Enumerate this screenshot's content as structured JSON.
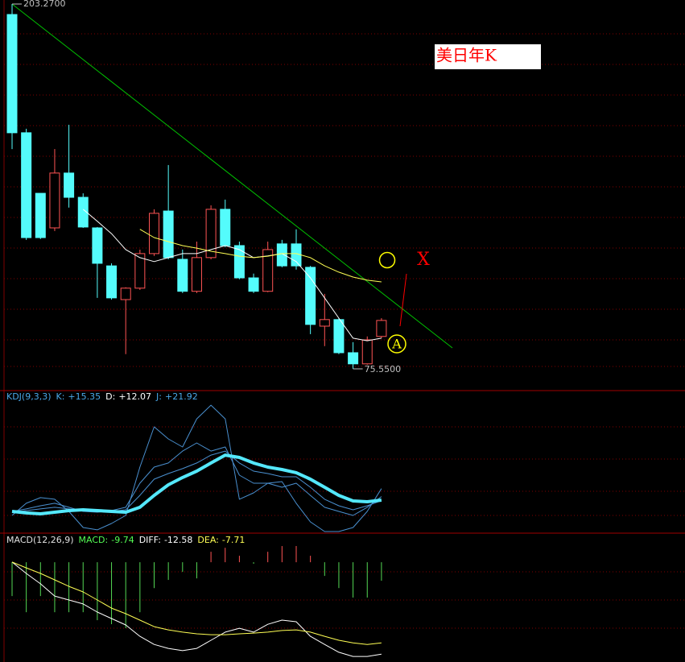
{
  "chart_data": [
    {
      "type": "candlestick",
      "title": "美日年K",
      "title_color": "#ff0000",
      "annotations": [
        "X",
        "A"
      ],
      "up_color": "#ff5454",
      "down_color": "#54fcfc",
      "ylim": [
        75.55,
        203.27
      ],
      "high_label": {
        "value": 203.27,
        "label": "203.2700"
      },
      "low_label": {
        "value": 75.55,
        "label": "75.5500"
      },
      "candles": [
        {
          "o": 199.6,
          "h": 203.27,
          "l": 152.5,
          "c": 158.2
        },
        {
          "o": 158.2,
          "h": 159.6,
          "l": 120.7,
          "c": 121.5
        },
        {
          "o": 137.0,
          "h": 137.0,
          "l": 121.0,
          "c": 121.5
        },
        {
          "o": 124.9,
          "h": 152.5,
          "l": 123.8,
          "c": 144.1
        },
        {
          "o": 144.1,
          "h": 161.0,
          "l": 132.0,
          "c": 135.6
        },
        {
          "o": 135.6,
          "h": 137.0,
          "l": 124.9,
          "c": 125.2
        },
        {
          "o": 124.9,
          "h": 125.2,
          "l": 100.4,
          "c": 112.5
        },
        {
          "o": 111.6,
          "h": 112.5,
          "l": 99.8,
          "c": 100.4
        },
        {
          "o": 99.8,
          "h": 104.1,
          "l": 80.7,
          "c": 103.8
        },
        {
          "o": 103.8,
          "h": 117.3,
          "l": 103.2,
          "c": 115.9
        },
        {
          "o": 115.9,
          "h": 131.4,
          "l": 115.1,
          "c": 130.0
        },
        {
          "o": 130.8,
          "h": 146.9,
          "l": 113.9,
          "c": 114.5
        },
        {
          "o": 113.9,
          "h": 117.3,
          "l": 102.1,
          "c": 102.7
        },
        {
          "o": 102.7,
          "h": 120.1,
          "l": 102.1,
          "c": 114.5
        },
        {
          "o": 114.5,
          "h": 132.8,
          "l": 113.9,
          "c": 131.4
        },
        {
          "o": 131.4,
          "h": 134.8,
          "l": 118.1,
          "c": 118.7
        },
        {
          "o": 118.7,
          "h": 120.1,
          "l": 106.9,
          "c": 107.4
        },
        {
          "o": 107.4,
          "h": 108.9,
          "l": 102.1,
          "c": 102.7
        },
        {
          "o": 102.7,
          "h": 120.1,
          "l": 102.4,
          "c": 117.3
        },
        {
          "o": 119.3,
          "h": 120.7,
          "l": 111.1,
          "c": 111.6
        },
        {
          "o": 119.3,
          "h": 124.4,
          "l": 110.3,
          "c": 111.6
        },
        {
          "o": 111.1,
          "h": 111.6,
          "l": 87.7,
          "c": 91.1
        },
        {
          "o": 90.5,
          "h": 101.8,
          "l": 83.5,
          "c": 92.8
        },
        {
          "o": 92.8,
          "h": 93.3,
          "l": 80.7,
          "c": 81.2
        },
        {
          "o": 81.2,
          "h": 84.9,
          "l": 75.55,
          "c": 77.3
        },
        {
          "o": 77.3,
          "h": 86.9,
          "l": 77.0,
          "c": 85.7
        },
        {
          "o": 86.9,
          "h": 93.3,
          "l": 86.3,
          "c": 92.5
        }
      ],
      "series": [
        {
          "color": "#ffffff",
          "values": [
            null,
            null,
            null,
            null,
            null,
            131.4,
            127.2,
            122.9,
            117.3,
            114.5,
            113.1,
            114.5,
            115.9,
            115.9,
            117.3,
            118.7,
            117.3,
            114.5,
            115.1,
            115.9,
            113.1,
            107.4,
            100.4,
            93.3,
            86.3,
            85.4,
            86.3
          ]
        },
        {
          "color": "#ffff54",
          "values": [
            null,
            null,
            null,
            null,
            null,
            null,
            null,
            null,
            null,
            124.4,
            121.5,
            120.1,
            118.7,
            117.8,
            116.7,
            115.9,
            115.0,
            114.5,
            115.0,
            115.9,
            115.9,
            114.5,
            111.6,
            109.4,
            107.7,
            106.6,
            106.0
          ]
        }
      ]
    },
    {
      "type": "line",
      "ylim": [
        -14.5,
        102
      ],
      "legend": [
        {
          "label": "KDJ(9,3,3)",
          "color": "#4aa8e8"
        },
        {
          "label": "K:",
          "value": 15.35,
          "value_label": "+15.35",
          "color": "#4aa8e8"
        },
        {
          "label": "D:",
          "value": 12.07,
          "value_label": "+12.07",
          "color": "#ffffff"
        },
        {
          "label": "J:",
          "value": 21.92,
          "value_label": "+21.92",
          "color": "#4aa8e8"
        }
      ],
      "series": [
        {
          "color": "#4a90d0",
          "width": 1,
          "values": [
            3.3,
            5.3,
            7.9,
            9.9,
            6.6,
            3.3,
            2.6,
            3.9,
            6.6,
            26.3,
            39.5,
            42.8,
            52.6,
            59.2,
            52.6,
            55.9,
            32.9,
            26.3,
            26.3,
            23.0,
            26.3,
            16.4,
            6.6,
            3.3,
            0,
            6.6,
            15.35
          ]
        },
        {
          "color": "#4a90d0",
          "width": 1,
          "values": [
            2.6,
            3.9,
            5.3,
            6.6,
            5.3,
            3.9,
            3.3,
            3.3,
            4.6,
            16.4,
            29.6,
            34.2,
            38.2,
            42.8,
            49.3,
            52.6,
            42.8,
            36.2,
            34.2,
            31.6,
            31.6,
            23.0,
            13.2,
            7.9,
            4.6,
            7.9,
            12.07
          ]
        },
        {
          "color": "#4a90d0",
          "width": 1,
          "values": [
            0,
            9.9,
            14.5,
            13.2,
            3.3,
            -9.9,
            -11.8,
            -6.6,
            0,
            39.5,
            72.4,
            62.5,
            55.9,
            78.9,
            90.1,
            78.9,
            13.2,
            18.4,
            26.3,
            27.6,
            9.9,
            -5.3,
            -13.2,
            -13.2,
            -9.9,
            3.3,
            21.92
          ]
        },
        {
          "color": "#54e8fc",
          "width": 4,
          "values": [
            3.3,
            2.0,
            1.3,
            2.6,
            3.9,
            4.6,
            3.9,
            3.3,
            2.6,
            6.6,
            16.4,
            25.0,
            31.0,
            36.2,
            42.8,
            49.3,
            47.4,
            42.8,
            39.5,
            37.5,
            34.9,
            29.6,
            23.0,
            16.4,
            11.8,
            11.2,
            12.5
          ]
        }
      ]
    },
    {
      "type": "macd",
      "ylim": [
        -52.5,
        15.3
      ],
      "y2lim": [
        -16.0,
        39.7
      ],
      "up_color": "#ff5454",
      "down_color": "#54d854",
      "legend": [
        {
          "label": "MACD(12,26,9)",
          "color": "#e0e0e0"
        },
        {
          "label": "MACD:",
          "value": -9.74,
          "value_label": "-9.74",
          "color": "#54fc54"
        },
        {
          "label": "DIFF:",
          "value": -12.58,
          "value_label": "-12.58",
          "color": "#ffffff"
        },
        {
          "label": "DEA:",
          "value": -7.71,
          "value_label": "-7.71",
          "color": "#ffff54"
        }
      ],
      "values": [
        -17.8,
        -26.3,
        -17.8,
        -26.3,
        -26.3,
        -26.3,
        -30.5,
        -32.6,
        -34.7,
        -26.3,
        -13.6,
        -9.3,
        -5.1,
        -8.5,
        5.5,
        7.6,
        3.4,
        -0.8,
        5.5,
        8.5,
        8.5,
        3.4,
        -7.2,
        -13.6,
        -18.6,
        -18.6,
        -9.74
      ],
      "series": [
        {
          "color": "#ffffff",
          "axis": "y2",
          "values": [
            27.2,
            22.3,
            17.8,
            12.5,
            10.8,
            9.1,
            5.6,
            2.8,
            0,
            -4.9,
            -8.4,
            -10.1,
            -11.1,
            -10.1,
            -6.6,
            -3.1,
            -1.4,
            -3.1,
            0.3,
            2.1,
            1.4,
            -4.9,
            -8.4,
            -11.8,
            -13.6,
            -13.6,
            -12.58
          ]
        },
        {
          "color": "#ffff54",
          "axis": "y2",
          "values": [
            27.2,
            24.7,
            22.3,
            19.5,
            16.7,
            14.3,
            10.8,
            7.3,
            4.9,
            2.1,
            -0.7,
            -2.1,
            -3.1,
            -3.8,
            -4.2,
            -4.2,
            -3.8,
            -3.5,
            -3.1,
            -2.4,
            -2.1,
            -3.1,
            -4.9,
            -6.6,
            -7.7,
            -8.4,
            -7.71
          ]
        }
      ]
    }
  ]
}
